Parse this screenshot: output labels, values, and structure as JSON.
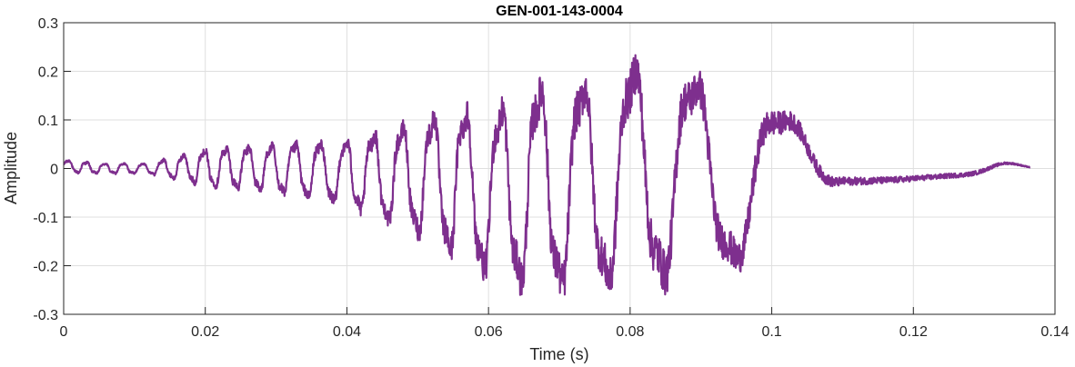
{
  "chart_data": {
    "type": "line",
    "title": "GEN-001-143-0004",
    "xlabel": "Time (s)",
    "ylabel": "Amplitude",
    "xlim": [
      0,
      0.14
    ],
    "ylim": [
      -0.3,
      0.3
    ],
    "xticks": [
      0,
      0.02,
      0.04,
      0.06,
      0.08,
      0.1,
      0.12,
      0.14
    ],
    "xtick_labels": [
      "0",
      "0.02",
      "0.04",
      "0.06",
      "0.08",
      "0.1",
      "0.12",
      "0.14"
    ],
    "yticks": [
      0.3,
      0.2,
      0.1,
      0,
      -0.1,
      -0.2,
      -0.3
    ],
    "ytick_labels": [
      "0.3",
      "0.2",
      "0.1",
      "0",
      "-0.1",
      "-0.2",
      "-0.3"
    ],
    "grid": true,
    "line_color": "#7E2F8E",
    "series": [
      {
        "name": "",
        "x_start": 0,
        "x_end": 0.1365,
        "envelope": {
          "x": [
            0,
            0.005,
            0.012,
            0.02,
            0.03,
            0.04,
            0.045,
            0.05,
            0.055,
            0.06,
            0.065,
            0.07,
            0.075,
            0.08,
            0.085,
            0.09,
            0.095,
            0.1,
            0.105,
            0.11,
            0.12,
            0.13,
            0.1365
          ],
          "upper": [
            0.02,
            0.012,
            0.012,
            0.045,
            0.055,
            0.065,
            0.09,
            0.11,
            0.15,
            0.13,
            0.19,
            0.21,
            0.2,
            0.24,
            0.27,
            0.2,
            0.17,
            0.15,
            0.09,
            0.05,
            0.035,
            0.025,
            0.004
          ],
          "lower": [
            -0.01,
            -0.012,
            -0.012,
            -0.04,
            -0.055,
            -0.085,
            -0.12,
            -0.15,
            -0.2,
            -0.24,
            -0.27,
            -0.28,
            -0.26,
            -0.28,
            -0.26,
            -0.24,
            -0.22,
            -0.15,
            -0.09,
            -0.045,
            -0.03,
            -0.02,
            -0.004
          ]
        }
      }
    ]
  }
}
